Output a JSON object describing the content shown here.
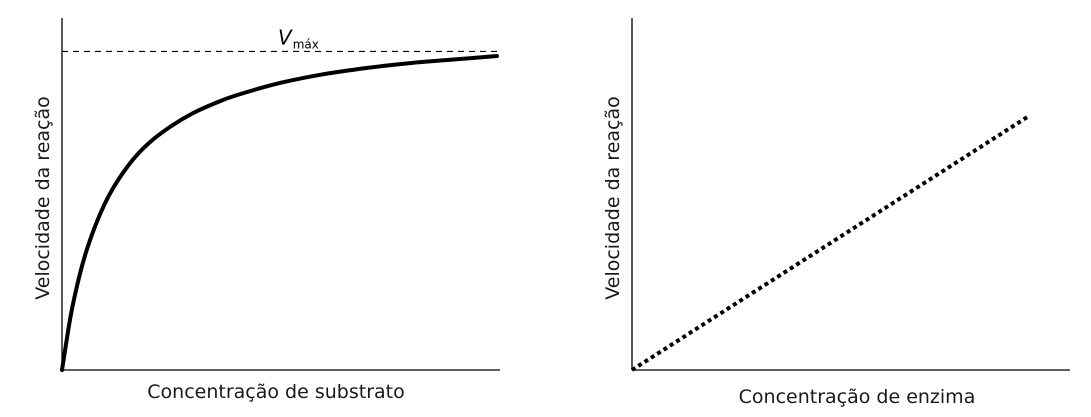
{
  "chart_data": [
    {
      "type": "line",
      "title": "",
      "xlabel": "Concentração de substrato",
      "ylabel": "Velocidade da reação",
      "xlim": [
        0,
        100
      ],
      "ylim": [
        0,
        100
      ],
      "grid": false,
      "legend": "none",
      "series": [
        {
          "style": "solid",
          "color": "#000000",
          "x": [
            0,
            2,
            4,
            6,
            9,
            12,
            16,
            20,
            25,
            30,
            35,
            40,
            50,
            60,
            70,
            80,
            90,
            100
          ],
          "y": [
            0,
            15.4,
            26.7,
            35.3,
            45.0,
            52.2,
            59.3,
            64.5,
            69.2,
            72.9,
            75.7,
            78.0,
            81.5,
            84.0,
            85.8,
            87.2,
            88.2,
            89.2
          ]
        }
      ],
      "reference_lines": [
        {
          "y": 90.5,
          "style": "dashed",
          "label": "V",
          "label_sub": "máx"
        }
      ]
    },
    {
      "type": "line",
      "title": "",
      "xlabel": "Concentração de enzima",
      "ylabel": "Velocidade da reação",
      "xlim": [
        0,
        100
      ],
      "ylim": [
        0,
        100
      ],
      "grid": false,
      "legend": "none",
      "series": [
        {
          "style": "dotted",
          "color": "#000000",
          "x": [
            0,
            100
          ],
          "y": [
            0,
            72
          ]
        }
      ]
    }
  ]
}
